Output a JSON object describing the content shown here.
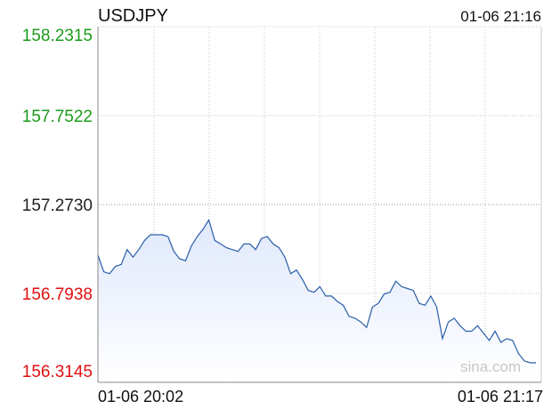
{
  "header": {
    "symbol": "USDJPY",
    "timestamp": "01-06 21:16"
  },
  "watermark": "sina.com",
  "colors": {
    "up": "#1a9c1a",
    "neutral": "#222222",
    "down": "#e01010",
    "line": "#2a5ea8",
    "fill": "#dfe8fb",
    "grid": "#c8c8c8",
    "axis": "#888888",
    "watermark": "#c7c7c7"
  },
  "chart_data": {
    "type": "area",
    "title": "USDJPY",
    "xlabel": "",
    "ylabel": "",
    "ylim": [
      156.3145,
      158.2315
    ],
    "reference_level": 157.273,
    "y_ticks": [
      {
        "label": "158.2315",
        "value": 158.2315,
        "tone": "up"
      },
      {
        "label": "157.7522",
        "value": 157.7522,
        "tone": "up"
      },
      {
        "label": "157.2730",
        "value": 157.273,
        "tone": "neutral"
      },
      {
        "label": "156.7938",
        "value": 156.7938,
        "tone": "down"
      },
      {
        "label": "156.3145",
        "value": 156.3145,
        "tone": "down"
      }
    ],
    "x_tick_labels": [
      "01-06 20:02",
      "01-06 21:17"
    ],
    "grid": true,
    "series": [
      {
        "values": [
          157.0,
          156.91,
          156.9,
          156.94,
          156.95,
          157.03,
          156.99,
          157.03,
          157.08,
          157.11,
          157.11,
          157.11,
          157.1,
          157.02,
          156.98,
          156.97,
          157.05,
          157.1,
          157.14,
          157.19,
          157.08,
          157.06,
          157.04,
          157.03,
          157.02,
          157.06,
          157.06,
          157.03,
          157.09,
          157.1,
          157.06,
          157.04,
          156.99,
          156.9,
          156.92,
          156.87,
          156.81,
          156.8,
          156.83,
          156.78,
          156.78,
          156.75,
          156.73,
          156.67,
          156.66,
          156.64,
          156.61,
          156.72,
          156.74,
          156.79,
          156.8,
          156.86,
          156.83,
          156.82,
          156.81,
          156.74,
          156.73,
          156.78,
          156.72,
          156.55,
          156.64,
          156.66,
          156.62,
          156.59,
          156.59,
          156.62,
          156.58,
          156.54,
          156.59,
          156.53,
          156.55,
          156.54,
          156.47,
          156.43,
          156.42,
          156.42
        ]
      }
    ]
  }
}
